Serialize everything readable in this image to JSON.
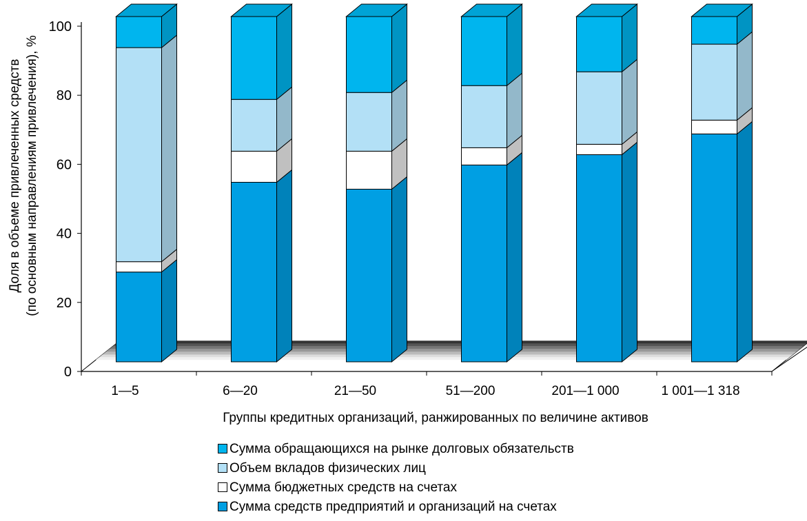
{
  "chart_data": {
    "type": "bar",
    "stacked": true,
    "three_d": true,
    "categories": [
      "1—5",
      "6—20",
      "21—50",
      "51—200",
      "201—1 000",
      "1 001—1 318"
    ],
    "series": [
      {
        "name": "Сумма средств предприятий и организаций на счетах",
        "values": [
          26,
          52,
          50,
          57,
          60,
          66
        ],
        "color": "#009fe3"
      },
      {
        "name": "Сумма бюджетных средств на счетах",
        "values": [
          3,
          9,
          11,
          5,
          3,
          4
        ],
        "color": "#ffffff"
      },
      {
        "name": "Объем вкладов физических лиц",
        "values": [
          62,
          15,
          17,
          18,
          21,
          22
        ],
        "color": "#b3e0f6"
      },
      {
        "name": "Сумма обращающихся на рынке долговых обязательств",
        "values": [
          9,
          24,
          22,
          20,
          16,
          8
        ],
        "color": "#00b5ee"
      }
    ],
    "legend_order": [
      3,
      2,
      1,
      0
    ],
    "xlabel": "Группы кредитных организаций, ранжированных по величине активов",
    "ylabel_line1": "Доля в объеме привлеченных средств",
    "ylabel_line2": "(по основным направлениям привлечения), %",
    "ylim": [
      0,
      100
    ],
    "yticks": [
      0,
      20,
      40,
      60,
      80,
      100
    ],
    "grid": false,
    "legend_position": "bottom-center"
  }
}
